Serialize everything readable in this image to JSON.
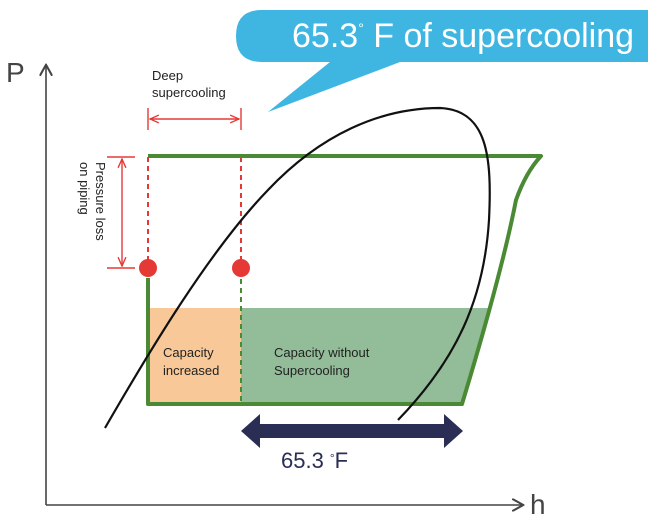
{
  "callout": {
    "value": "65.3",
    "degree": "°",
    "text": " F of supercooling"
  },
  "axes": {
    "y_label": "P",
    "x_label": "h"
  },
  "annotations": {
    "deep_supercooling_line1": "Deep",
    "deep_supercooling_line2": "supercooling",
    "pressure_loss_line1": "Pressure loss",
    "pressure_loss_line2": "on piping"
  },
  "regions": {
    "capacity_increased_line1": "Capacity",
    "capacity_increased_line2": "increased",
    "capacity_without_line1": "Capacity without",
    "capacity_without_line2": "Supercooling"
  },
  "range_arrow": {
    "value": "65.3",
    "degree": "°",
    "unit": "F"
  },
  "colors": {
    "callout_fill": "#3fb6e2",
    "cycle_green": "#4a8a35",
    "region_green": "#93bd98",
    "region_orange": "#f8c898",
    "annotation_red": "#e53935",
    "arrow_navy": "#2a2d54",
    "curve_black": "#111111",
    "axis_grey": "#444444"
  }
}
